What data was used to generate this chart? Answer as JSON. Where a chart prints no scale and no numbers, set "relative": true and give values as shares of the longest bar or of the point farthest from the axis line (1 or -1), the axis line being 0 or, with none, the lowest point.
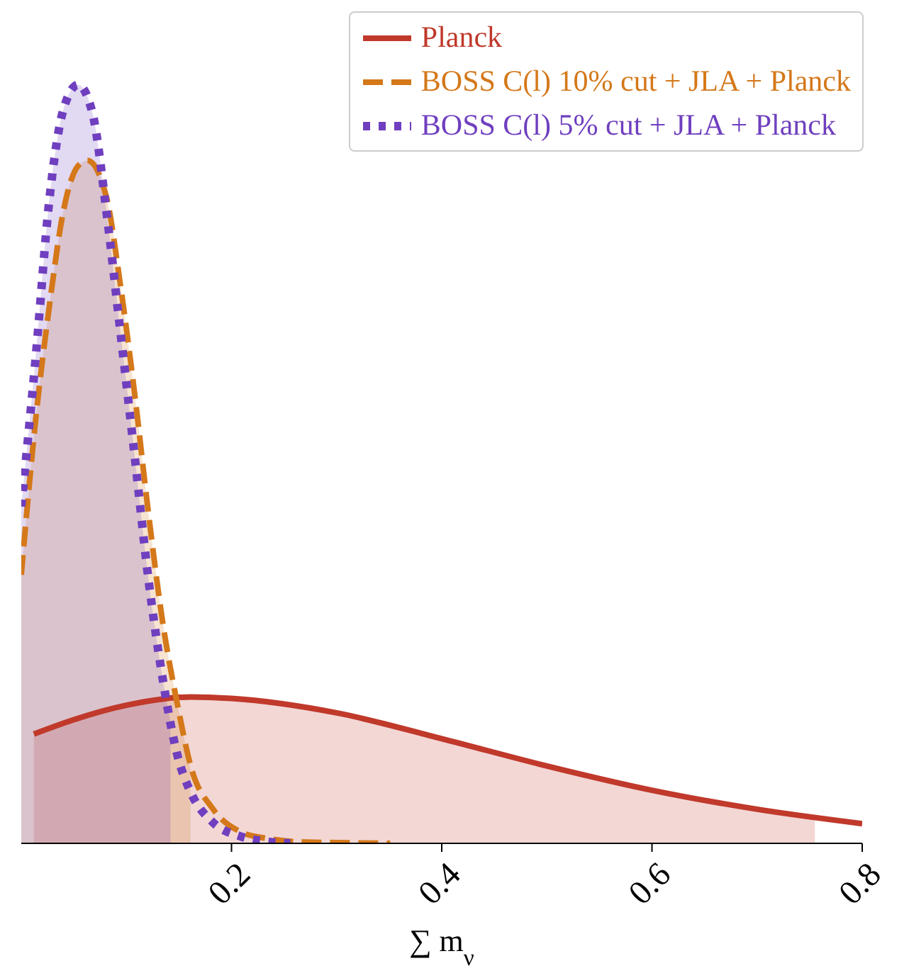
{
  "chart_data": {
    "type": "line",
    "relative": true,
    "xlabel": "∑ m$_{ν}$",
    "xlim": [
      0,
      0.8
    ],
    "xticks": [
      0.2,
      0.4,
      0.6,
      0.8
    ],
    "grid": false,
    "legend": "top right",
    "marker": "none",
    "tick_labels": "x",
    "series": [
      {
        "type": "area",
        "color": "#c0392b",
        "x": [
          0.012,
          0.05,
          0.1,
          0.161,
          0.2,
          0.3,
          0.4,
          0.5,
          0.6,
          0.7,
          0.755
        ],
        "values": [
          0.144,
          0.163,
          0.182,
          0.193,
          0.191,
          0.172,
          0.138,
          0.102,
          0.07,
          0.045,
          0.032
        ]
      },
      {
        "type": "area",
        "color": "#d4781a",
        "x": [
          0,
          0.0135,
          0.027,
          0.04,
          0.054,
          0.063,
          0.081,
          0.094,
          0.108,
          0.121,
          0.135,
          0.148,
          0.161
        ],
        "values": [
          0.354,
          0.556,
          0.711,
          0.833,
          0.893,
          0.9,
          0.852,
          0.739,
          0.591,
          0.435,
          0.287,
          0.187,
          0.098
        ]
      },
      {
        "type": "area",
        "color": "#6f3fbf",
        "x": [
          0,
          0.0135,
          0.027,
          0.04,
          0.054,
          0.068,
          0.081,
          0.094,
          0.108,
          0.121,
          0.135,
          0.142
        ],
        "values": [
          0.444,
          0.637,
          0.852,
          0.967,
          1,
          0.961,
          0.833,
          0.678,
          0.509,
          0.348,
          0.213,
          0.16
        ]
      },
      {
        "type": "line",
        "name": "Planck",
        "color": "#c0392b",
        "line_style": "solid",
        "x": [
          0.012,
          0.05,
          0.1,
          0.161,
          0.2,
          0.3,
          0.4,
          0.5,
          0.6,
          0.7,
          0.8
        ],
        "values": [
          0.144,
          0.163,
          0.182,
          0.193,
          0.191,
          0.172,
          0.138,
          0.102,
          0.07,
          0.045,
          0.026
        ]
      },
      {
        "type": "line",
        "name": "BOSS C(l) 10% cut + JLA + Planck",
        "color": "#d4781a",
        "line_style": "dashed",
        "x": [
          0,
          0.0135,
          0.027,
          0.04,
          0.054,
          0.063,
          0.081,
          0.094,
          0.108,
          0.121,
          0.135,
          0.148,
          0.162,
          0.182,
          0.209,
          0.236,
          0.263,
          0.3,
          0.351
        ],
        "values": [
          0.354,
          0.556,
          0.711,
          0.833,
          0.893,
          0.9,
          0.852,
          0.739,
          0.591,
          0.435,
          0.287,
          0.187,
          0.098,
          0.046,
          0.015,
          0.006,
          0.002,
          0.001,
          0
        ]
      },
      {
        "type": "line",
        "name": "BOSS C(l) 5% cut + JLA + Planck",
        "color": "#6f3fbf",
        "line_style": "dotted",
        "x": [
          0,
          0.0135,
          0.027,
          0.04,
          0.054,
          0.068,
          0.081,
          0.094,
          0.108,
          0.121,
          0.135,
          0.148,
          0.162,
          0.182,
          0.209,
          0.236,
          0.256
        ],
        "values": [
          0.444,
          0.637,
          0.852,
          0.967,
          1,
          0.961,
          0.833,
          0.678,
          0.509,
          0.348,
          0.213,
          0.119,
          0.065,
          0.028,
          0.009,
          0.002,
          0
        ]
      }
    ]
  }
}
